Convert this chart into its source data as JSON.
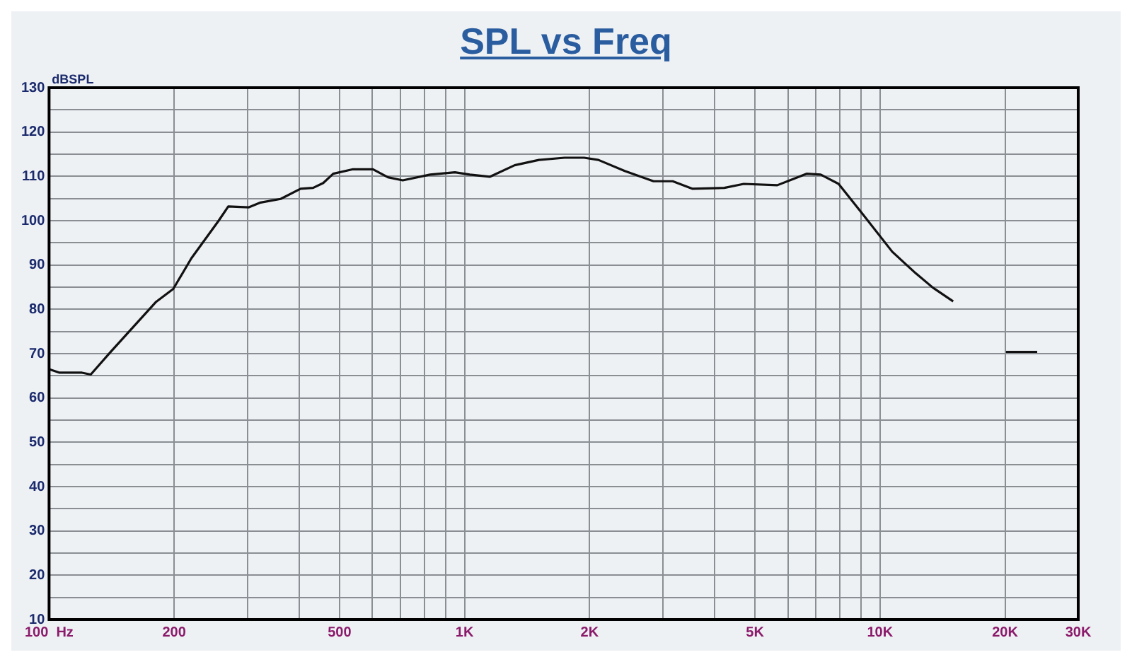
{
  "chart_data": {
    "type": "line",
    "title": "SPL vs Freq",
    "ylabel": "dBSPL",
    "x": [
      100,
      106,
      120,
      126,
      141,
      181,
      199,
      220,
      256,
      270,
      302,
      323,
      361,
      403,
      432,
      457,
      483,
      539,
      602,
      654,
      710,
      826,
      948,
      1030,
      1150,
      1320,
      1510,
      1740,
      1940,
      2100,
      2430,
      2850,
      3170,
      3540,
      4220,
      4700,
      5660,
      6670,
      7200,
      7950,
      9100,
      10700,
      12200,
      13400,
      15000,
      17500,
      20100,
      23900
    ],
    "values": [
      66.5,
      65.7,
      65.7,
      65.3,
      70.5,
      81.7,
      84.6,
      91.5,
      100,
      103.2,
      103,
      104.1,
      104.9,
      107.2,
      107.4,
      108.5,
      110.6,
      111.6,
      111.6,
      109.8,
      109.1,
      110.4,
      110.9,
      110.4,
      109.9,
      112.5,
      113.7,
      114.2,
      114.2,
      113.7,
      111.2,
      108.9,
      108.9,
      107.2,
      107.4,
      108.3,
      108,
      110.6,
      110.4,
      108.3,
      101.4,
      93,
      88.1,
      84.9,
      81.8,
      null,
      70.4,
      70.4
    ],
    "color": "#111111",
    "marker": "none",
    "legend": false,
    "grid": true,
    "log": "x",
    "xlim": [
      100,
      30000
    ],
    "xticks": [
      {
        "value": 100,
        "label": "100  Hz"
      },
      {
        "value": 200,
        "label": "200"
      },
      {
        "value": 300,
        "label": null
      },
      {
        "value": 400,
        "label": null
      },
      {
        "value": 500,
        "label": "500"
      },
      {
        "value": 600,
        "label": null
      },
      {
        "value": 700,
        "label": null
      },
      {
        "value": 800,
        "label": null
      },
      {
        "value": 900,
        "label": null
      },
      {
        "value": 1000,
        "label": "1K"
      },
      {
        "value": 2000,
        "label": "2K"
      },
      {
        "value": 3000,
        "label": null
      },
      {
        "value": 4000,
        "label": null
      },
      {
        "value": 5000,
        "label": "5K"
      },
      {
        "value": 6000,
        "label": null
      },
      {
        "value": 7000,
        "label": null
      },
      {
        "value": 8000,
        "label": null
      },
      {
        "value": 9000,
        "label": null
      },
      {
        "value": 10000,
        "label": "10K"
      },
      {
        "value": 20000,
        "label": "20K"
      },
      {
        "value": 30000,
        "label": "30K"
      }
    ],
    "ylim": [
      10,
      130
    ],
    "yticks": [
      10,
      {
        "value": 15,
        "label": null
      },
      20,
      {
        "value": 25,
        "label": null
      },
      30,
      {
        "value": 35,
        "label": null
      },
      40,
      {
        "value": 45,
        "label": null
      },
      50,
      {
        "value": 55,
        "label": null
      },
      60,
      {
        "value": 65,
        "label": null
      },
      70,
      {
        "value": 75,
        "label": null
      },
      80,
      {
        "value": 85,
        "label": null
      },
      90,
      {
        "value": 95,
        "label": null
      },
      100,
      {
        "value": 105,
        "label": null
      },
      110,
      {
        "value": 115,
        "label": null
      },
      120,
      {
        "value": 125,
        "label": null
      },
      130
    ]
  }
}
